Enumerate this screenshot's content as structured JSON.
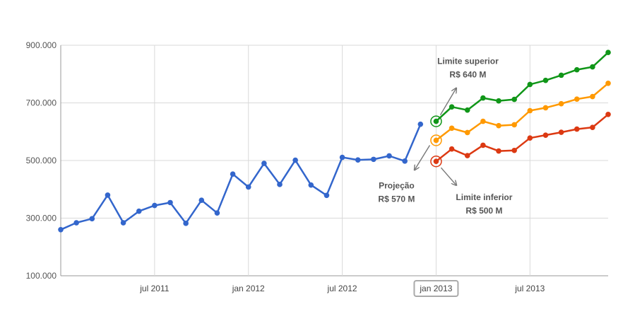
{
  "chart_data": {
    "type": "line",
    "y_ticks": [
      "900.000",
      "700.000",
      "500.000",
      "300.000",
      "100.000"
    ],
    "y_tick_values": [
      900000,
      700000,
      500000,
      300000,
      100000
    ],
    "ylim": [
      100000,
      900000
    ],
    "x_ticks": [
      "jul 2011",
      "jan 2012",
      "jul 2012",
      "jan 2013",
      "jul 2013"
    ],
    "x_tick_index": [
      6,
      12,
      18,
      24,
      30
    ],
    "x_range": [
      0,
      35
    ],
    "highlighted_tick": "jan 2013",
    "grid": true,
    "series": [
      {
        "key": "history",
        "color": "#3366cc",
        "x": [
          0,
          1,
          2,
          3,
          4,
          5,
          6,
          7,
          8,
          9,
          10,
          11,
          12,
          13,
          14,
          15,
          16,
          17,
          18,
          19,
          20,
          21,
          22,
          23
        ],
        "values": [
          260000,
          284000,
          298000,
          380000,
          284000,
          324000,
          344000,
          354000,
          282000,
          362000,
          318000,
          453000,
          408000,
          490000,
          417000,
          501000,
          415000,
          379000,
          511000,
          502000,
          504000,
          516000,
          498000,
          626000
        ]
      },
      {
        "key": "upper",
        "color": "#109618",
        "x": [
          24,
          25,
          26,
          27,
          28,
          29,
          30,
          31,
          32,
          33,
          34,
          35
        ],
        "values": [
          636000,
          686000,
          675000,
          717000,
          707000,
          712000,
          764000,
          778000,
          796000,
          815000,
          825000,
          875000
        ]
      },
      {
        "key": "projection",
        "color": "#ff9900",
        "x": [
          24,
          25,
          26,
          27,
          28,
          29,
          30,
          31,
          32,
          33,
          34,
          35
        ],
        "values": [
          570000,
          612000,
          597000,
          636000,
          621000,
          624000,
          673000,
          683000,
          697000,
          713000,
          722000,
          768000
        ]
      },
      {
        "key": "lower",
        "color": "#dc3912",
        "x": [
          24,
          25,
          26,
          27,
          28,
          29,
          30,
          31,
          32,
          33,
          34,
          35
        ],
        "values": [
          497000,
          540000,
          517000,
          553000,
          533000,
          535000,
          578000,
          588000,
          598000,
          609000,
          615000,
          660000
        ]
      }
    ],
    "annotations": [
      {
        "key": "upper",
        "line1": "Limite superior",
        "line2": "R$ 640 M",
        "x": 24,
        "value": 636000,
        "color": "#109618"
      },
      {
        "key": "projection",
        "line1": "Projeção",
        "line2": "R$ 570 M",
        "x": 24,
        "value": 570000,
        "color": "#ff9900"
      },
      {
        "key": "lower",
        "line1": "Limite inferior",
        "line2": "R$ 500 M",
        "x": 24,
        "value": 497000,
        "color": "#dc3912"
      }
    ]
  }
}
